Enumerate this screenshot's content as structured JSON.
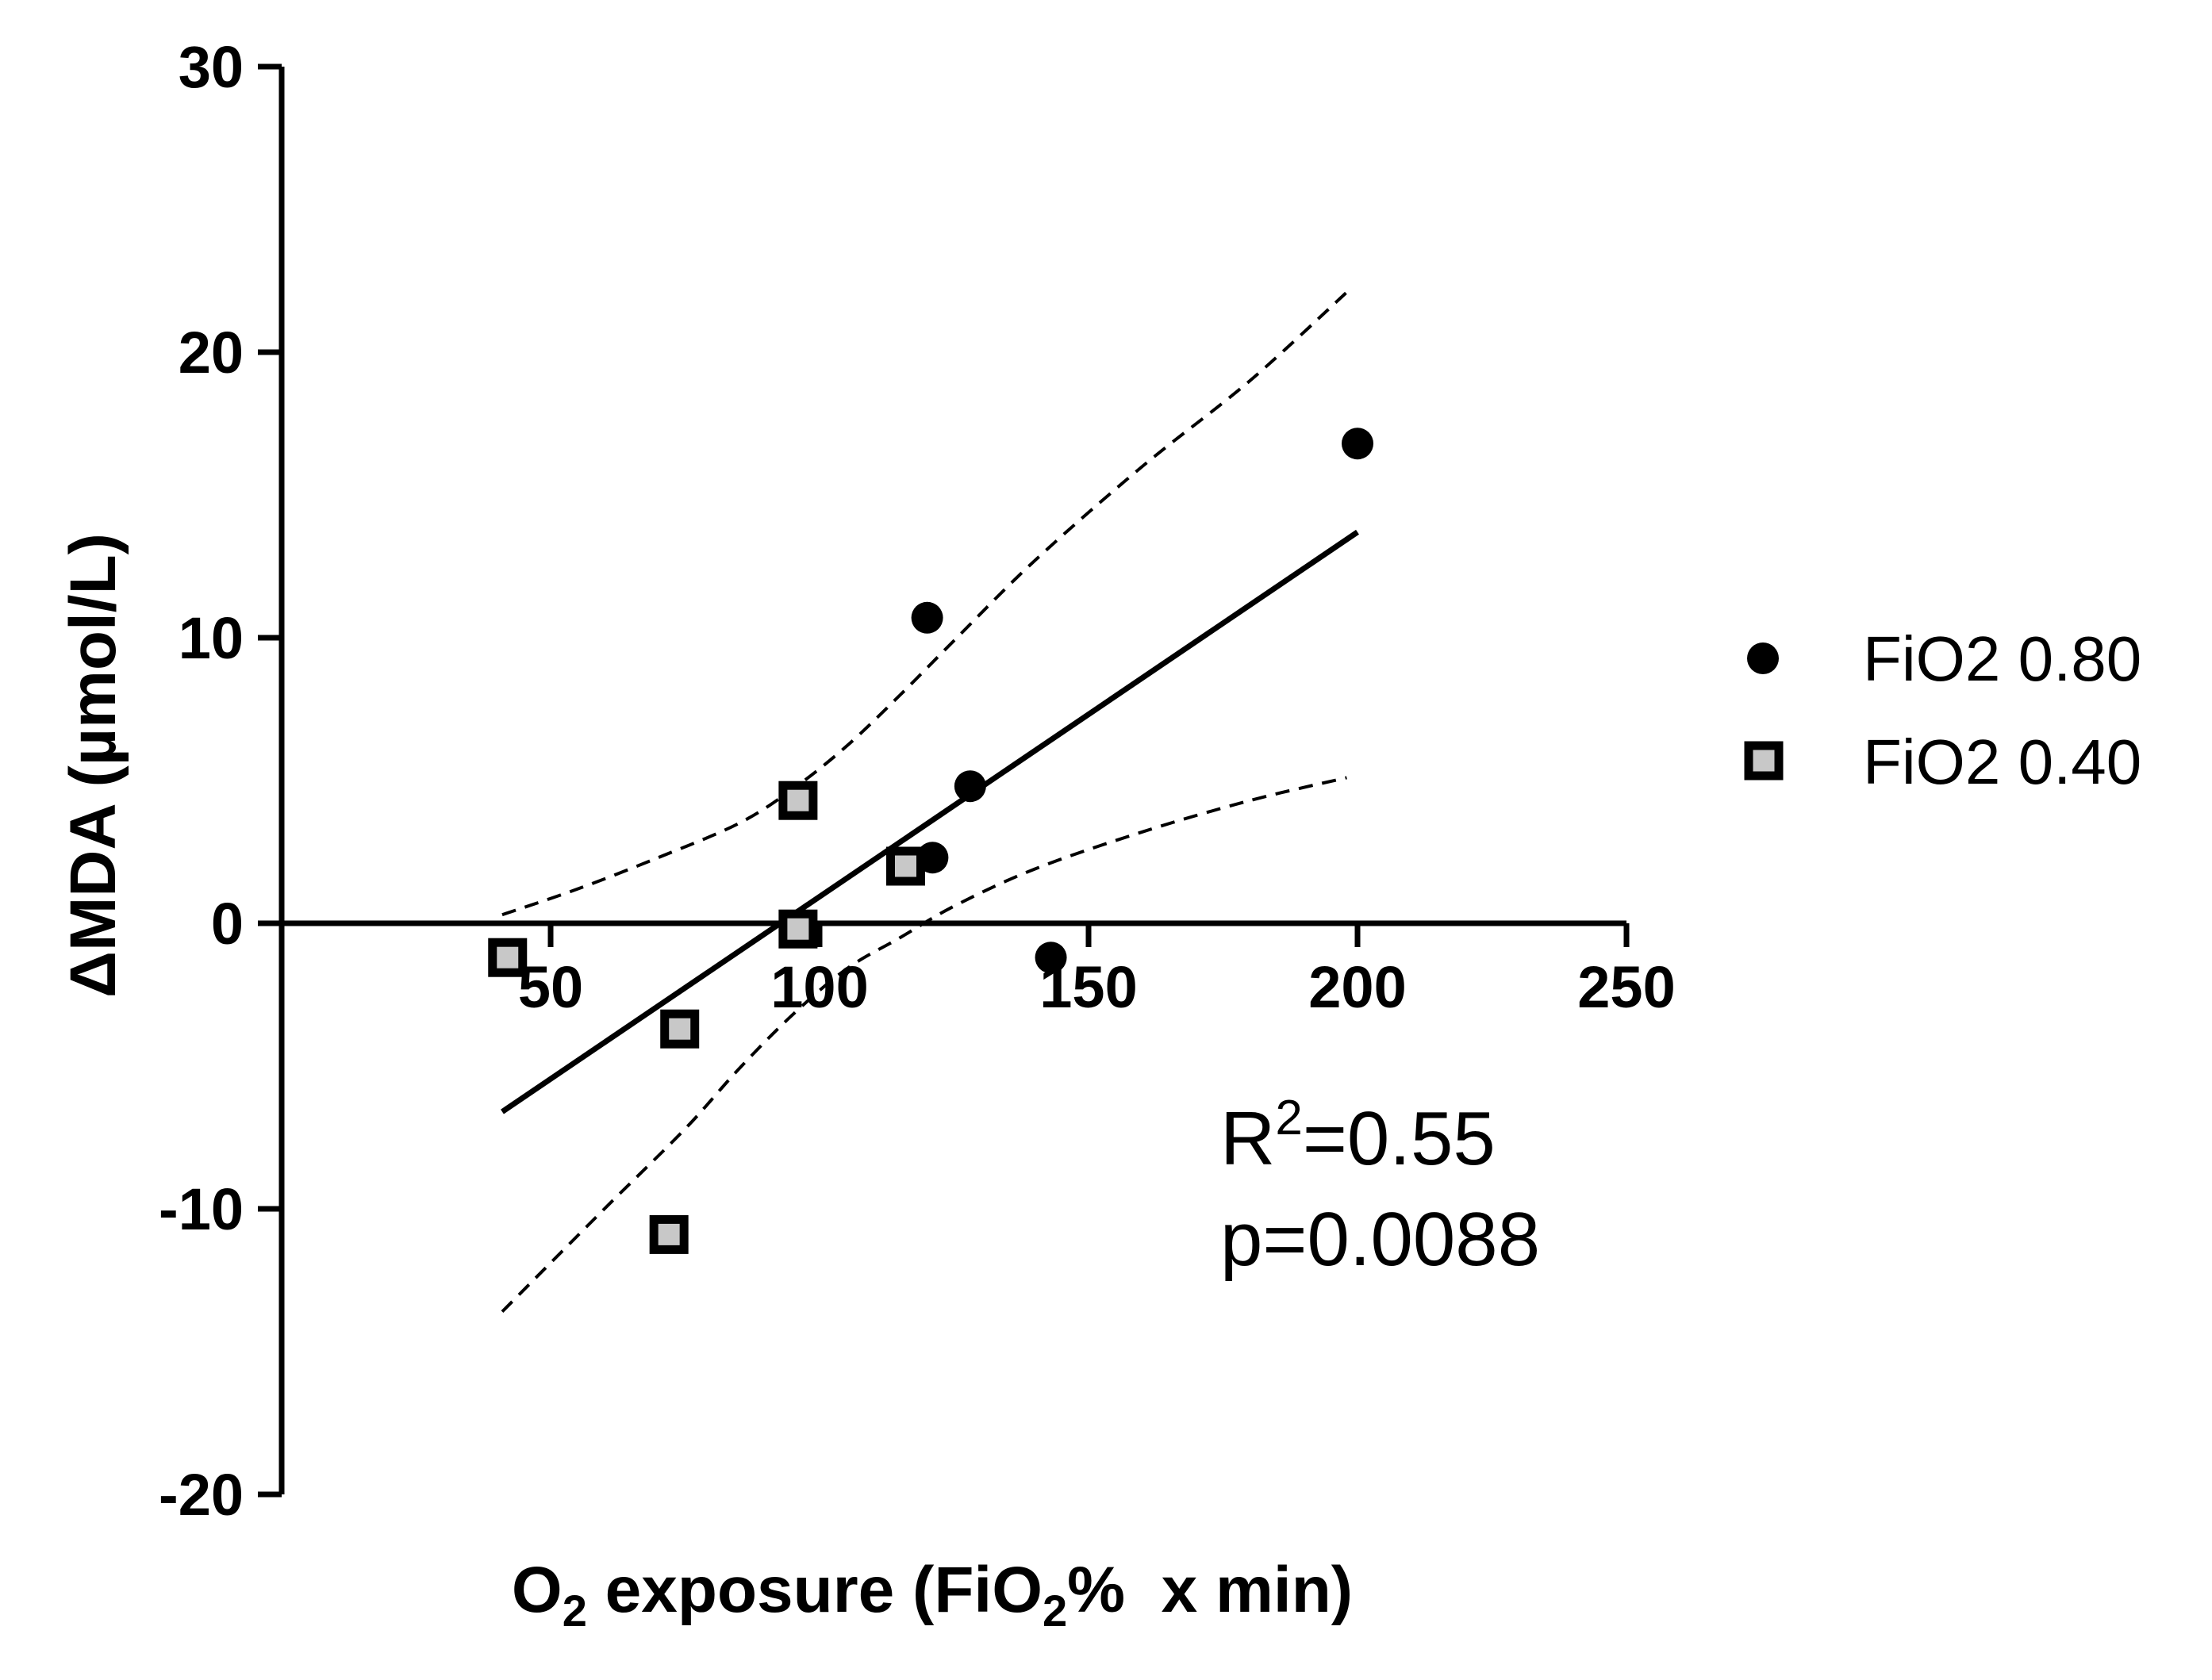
{
  "chart_data": {
    "type": "scatter",
    "xlabel_parts": [
      "O",
      "2",
      " exposure (FiO",
      "2",
      "%  x min)"
    ],
    "ylabel": "ΔMDA (µmol/L)",
    "xlim": [
      0,
      250
    ],
    "ylim": [
      -20,
      30
    ],
    "x_ticks": [
      50,
      100,
      150,
      200,
      250
    ],
    "y_ticks": [
      -20,
      -10,
      0,
      10,
      20,
      30
    ],
    "grid": false,
    "legend_position": "right",
    "series": [
      {
        "name": "FiO2 0.80",
        "marker": "filled-circle",
        "color": "#000000",
        "points": [
          [
            120,
            10.7
          ],
          [
            200,
            16.8
          ],
          [
            128,
            4.8
          ],
          [
            121,
            2.3
          ],
          [
            143,
            -1.2
          ]
        ]
      },
      {
        "name": "FiO2 0.40",
        "marker": "open-square",
        "color": "#000000",
        "fill": "#c8c8c8",
        "points": [
          [
            42,
            -1.2
          ],
          [
            74,
            -3.7
          ],
          [
            72,
            -10.9
          ],
          [
            96,
            4.3
          ],
          [
            96,
            -0.2
          ],
          [
            116,
            2.0
          ]
        ]
      }
    ],
    "regression": {
      "line": [
        [
          41,
          -6.6
        ],
        [
          200,
          13.7
        ]
      ],
      "ci_upper": [
        [
          41,
          0.3
        ],
        [
          55,
          1.2
        ],
        [
          70,
          2.3
        ],
        [
          85,
          3.5
        ],
        [
          95,
          4.7
        ],
        [
          105,
          6.2
        ],
        [
          115,
          8.0
        ],
        [
          125,
          9.9
        ],
        [
          140,
          12.7
        ],
        [
          160,
          16.0
        ],
        [
          180,
          19.0
        ],
        [
          198,
          22.1
        ]
      ],
      "ci_lower": [
        [
          41,
          -13.6
        ],
        [
          60,
          -10.0
        ],
        [
          75,
          -7.2
        ],
        [
          85,
          -5.1
        ],
        [
          95,
          -3.2
        ],
        [
          105,
          -1.6
        ],
        [
          115,
          -0.5
        ],
        [
          125,
          0.6
        ],
        [
          140,
          1.9
        ],
        [
          160,
          3.2
        ],
        [
          180,
          4.3
        ],
        [
          198,
          5.1
        ]
      ]
    },
    "annotations": {
      "r2_prefix": "R",
      "r2_sup": "2",
      "r2_value": "=0.55",
      "p_value": "p=0.0088"
    }
  }
}
